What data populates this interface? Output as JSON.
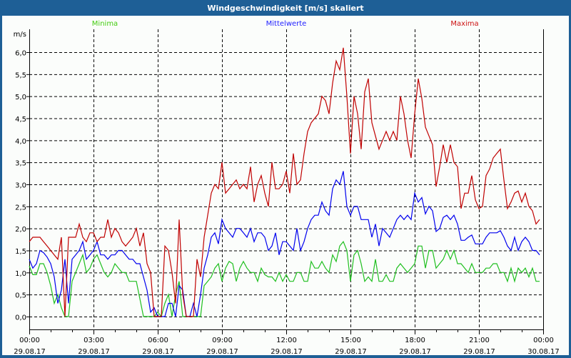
{
  "window": {
    "title": "Windgeschwindigkeit [m/s] skaliert"
  },
  "chart_data": {
    "type": "line",
    "title": "Windgeschwindigkeit [m/s] skaliert",
    "ylabel": "m/s",
    "xlabel": "",
    "ylim": [
      0,
      6.5
    ],
    "y_ticks": [
      "0,0",
      "0,5",
      "1,0",
      "1,5",
      "2,0",
      "2,5",
      "3,0",
      "3,5",
      "4,0",
      "4,5",
      "5,0",
      "5,5",
      "6,0"
    ],
    "x_range_hours": [
      0,
      24
    ],
    "x_interval_minutes": 10,
    "x_ticks": [
      {
        "time": "00:00",
        "date": "29.08.17"
      },
      {
        "time": "03:00",
        "date": "29.08.17"
      },
      {
        "time": "06:00",
        "date": "29.08.17"
      },
      {
        "time": "09:00",
        "date": "29.08.17"
      },
      {
        "time": "12:00",
        "date": "29.08.17"
      },
      {
        "time": "15:00",
        "date": "29.08.17"
      },
      {
        "time": "18:00",
        "date": "29.08.17"
      },
      {
        "time": "21:00",
        "date": "29.08.17"
      },
      {
        "time": "00:00",
        "date": "30.08.17"
      }
    ],
    "grid": true,
    "legend_placement": "top",
    "series": [
      {
        "name": "Minima",
        "color": "#1fbf1f",
        "label_color": "#44cc11",
        "values": [
          1.15,
          0.95,
          0.95,
          1.2,
          1.2,
          1.0,
          0.7,
          0.3,
          0.5,
          0.2,
          0,
          0,
          0.8,
          1.0,
          1.2,
          1.4,
          1.0,
          1.1,
          1.3,
          1.4,
          1.2,
          1.0,
          0.9,
          1.0,
          1.2,
          1.1,
          1.0,
          1.0,
          0.8,
          0.8,
          0.8,
          0.4,
          0,
          0,
          0,
          0,
          0.1,
          0,
          0.3,
          0.5,
          0,
          0.5,
          0.8,
          0,
          0,
          0,
          0,
          0,
          0,
          0.7,
          0.8,
          0.9,
          1.1,
          1.2,
          0.8,
          1.1,
          1.25,
          1.2,
          0.8,
          1.1,
          1.25,
          1.1,
          1.0,
          1.0,
          0.8,
          1.1,
          0.95,
          0.9,
          0.9,
          0.8,
          1.0,
          0.8,
          0.95,
          0.8,
          0.8,
          1.0,
          1.0,
          0.8,
          0.8,
          1.25,
          1.1,
          1.1,
          1.25,
          1.1,
          1.0,
          1.4,
          1.25,
          1.6,
          1.7,
          1.5,
          0.8,
          1.4,
          1.5,
          1.2,
          0.8,
          0.9,
          0.8,
          1.3,
          0.8,
          0.8,
          0.95,
          0.8,
          0.8,
          1.1,
          1.2,
          1.1,
          1.0,
          1.1,
          1.2,
          1.6,
          1.6,
          1.1,
          1.5,
          1.5,
          1.1,
          1.2,
          1.3,
          1.5,
          1.3,
          1.5,
          1.2,
          1.2,
          1.1,
          1.0,
          1.2,
          1.0,
          1.0,
          1.0,
          1.1,
          1.1,
          1.2,
          1.2,
          1.0,
          1.0,
          0.8,
          1.1,
          0.8,
          1.1,
          1.0,
          1.1,
          0.9,
          1.1,
          0.8,
          0.8
        ]
      },
      {
        "name": "Mittelwerte",
        "color": "#0000ee",
        "label_color": "#2222ff",
        "values": [
          1.3,
          1.1,
          1.2,
          1.5,
          1.45,
          1.35,
          1.2,
          0.9,
          0.3,
          0.6,
          1.3,
          0.3,
          1.3,
          1.4,
          1.5,
          1.7,
          1.3,
          1.4,
          1.5,
          1.7,
          1.4,
          1.4,
          1.3,
          1.4,
          1.4,
          1.5,
          1.5,
          1.4,
          1.3,
          1.3,
          1.2,
          1.2,
          0.9,
          0.6,
          0.1,
          0.2,
          0,
          0,
          0,
          0.3,
          0.3,
          0,
          0.7,
          0.6,
          0,
          0,
          0.3,
          0,
          0.5,
          1.1,
          1.4,
          1.8,
          1.9,
          1.65,
          2.2,
          2.0,
          1.9,
          1.8,
          2.0,
          2.0,
          1.9,
          1.8,
          2.0,
          1.7,
          1.9,
          1.9,
          1.8,
          1.5,
          1.6,
          1.9,
          1.4,
          1.7,
          1.7,
          1.6,
          1.5,
          2.0,
          1.5,
          1.7,
          2.0,
          2.2,
          2.3,
          2.3,
          2.6,
          2.4,
          2.3,
          2.9,
          3.1,
          3.0,
          3.3,
          2.5,
          2.3,
          2.5,
          2.5,
          2.2,
          2.2,
          2.2,
          1.8,
          2.1,
          1.6,
          2.0,
          1.9,
          1.8,
          2.0,
          2.2,
          2.3,
          2.2,
          2.3,
          2.2,
          2.8,
          2.6,
          2.7,
          2.33,
          2.5,
          2.4,
          1.93,
          2.0,
          2.25,
          2.3,
          2.2,
          2.3,
          2.1,
          1.73,
          1.73,
          1.8,
          1.85,
          1.65,
          1.65,
          1.65,
          1.8,
          1.9,
          1.9,
          1.9,
          1.95,
          1.8,
          1.6,
          1.5,
          1.8,
          1.5,
          1.7,
          1.8,
          1.7,
          1.5,
          1.5,
          1.4
        ]
      },
      {
        "name": "Maxima",
        "color": "#c00000",
        "label_color": "#cc1111",
        "values": [
          1.7,
          1.8,
          1.8,
          1.8,
          1.7,
          1.6,
          1.5,
          1.4,
          1.3,
          1.8,
          0.0,
          1.8,
          1.8,
          1.8,
          2.1,
          1.8,
          1.7,
          1.9,
          1.9,
          1.7,
          1.8,
          1.8,
          2.2,
          1.8,
          2.0,
          1.9,
          1.7,
          1.6,
          1.7,
          1.8,
          2.0,
          1.6,
          1.9,
          1.2,
          1.0,
          0.0,
          0.0,
          0.0,
          1.6,
          1.5,
          1.0,
          0.3,
          2.2,
          0.5,
          0.0,
          0.0,
          0.0,
          1.3,
          0.9,
          1.8,
          2.3,
          2.8,
          3.0,
          2.9,
          3.5,
          2.8,
          2.9,
          3.0,
          3.1,
          2.9,
          3.0,
          2.9,
          3.4,
          2.6,
          3.0,
          3.2,
          2.8,
          2.5,
          3.5,
          2.9,
          2.9,
          3.0,
          3.3,
          2.8,
          3.7,
          3.0,
          3.1,
          3.7,
          4.2,
          4.4,
          4.5,
          4.6,
          5.0,
          4.9,
          4.6,
          5.3,
          5.8,
          5.6,
          6.1,
          5.0,
          3.7,
          5.0,
          4.6,
          3.8,
          5.1,
          5.4,
          4.4,
          4.1,
          3.8,
          4.0,
          4.2,
          4.0,
          4.2,
          4.0,
          5.0,
          4.6,
          4.0,
          3.6,
          4.6,
          5.4,
          4.95,
          4.3,
          4.1,
          3.9,
          2.95,
          3.4,
          3.9,
          3.5,
          3.9,
          3.5,
          3.4,
          2.45,
          2.8,
          2.8,
          3.2,
          2.65,
          2.45,
          2.5,
          3.2,
          3.35,
          3.6,
          3.7,
          3.8,
          3.1,
          2.45,
          2.6,
          2.8,
          2.85,
          2.6,
          2.8,
          2.5,
          2.4,
          2.1,
          2.2
        ]
      }
    ]
  }
}
